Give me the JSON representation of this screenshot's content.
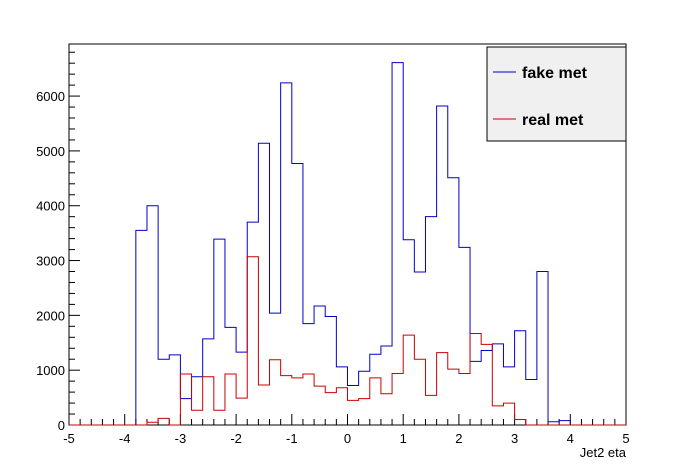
{
  "chart_data": {
    "type": "histogram-step",
    "xlabel": "Jet2 eta",
    "ylabel": "",
    "xlim": [
      -5,
      5
    ],
    "ylim": [
      0,
      6950
    ],
    "x_ticks": [
      -5,
      -4,
      -3,
      -2,
      -1,
      0,
      1,
      2,
      3,
      4,
      5
    ],
    "y_ticks": [
      0,
      1000,
      2000,
      3000,
      4000,
      5000,
      6000
    ],
    "bin_edges": [
      -5.0,
      -4.8,
      -4.6,
      -4.4,
      -4.2,
      -4.0,
      -3.8,
      -3.6,
      -3.4,
      -3.2,
      -3.0,
      -2.8,
      -2.6,
      -2.4,
      -2.2,
      -2.0,
      -1.8,
      -1.6,
      -1.4,
      -1.2,
      -1.0,
      -0.8,
      -0.6,
      -0.4,
      -0.2,
      0.0,
      0.2,
      0.4,
      0.6,
      0.8,
      1.0,
      1.2,
      1.4,
      1.6,
      1.8,
      2.0,
      2.2,
      2.4,
      2.6,
      2.8,
      3.0,
      3.2,
      3.4,
      3.6,
      3.8,
      4.0,
      4.2,
      4.4,
      4.6,
      4.8,
      5.0
    ],
    "series": [
      {
        "name": "fake met",
        "color": "#0000cc",
        "values": [
          0,
          0,
          0,
          0,
          0,
          0,
          3550,
          4000,
          1200,
          1280,
          480,
          880,
          1570,
          3390,
          1780,
          1330,
          3700,
          5140,
          2040,
          6240,
          4770,
          1850,
          2170,
          1980,
          1060,
          720,
          980,
          1290,
          1440,
          6610,
          3380,
          2790,
          3800,
          5820,
          4510,
          3240,
          1160,
          1360,
          1480,
          1060,
          1720,
          830,
          2800,
          60,
          80,
          0,
          0,
          0,
          0,
          0
        ]
      },
      {
        "name": "real met",
        "color": "#cc0000",
        "values": [
          0,
          0,
          0,
          0,
          0,
          0,
          0,
          50,
          120,
          0,
          930,
          270,
          880,
          270,
          930,
          490,
          3070,
          730,
          1190,
          900,
          860,
          930,
          710,
          590,
          680,
          450,
          480,
          860,
          570,
          940,
          1640,
          1200,
          540,
          1320,
          1020,
          940,
          1670,
          1470,
          350,
          400,
          100,
          0,
          0,
          0,
          0,
          0,
          0,
          0,
          0,
          0
        ]
      }
    ],
    "legend": {
      "position": "top-right"
    },
    "grid": false
  }
}
